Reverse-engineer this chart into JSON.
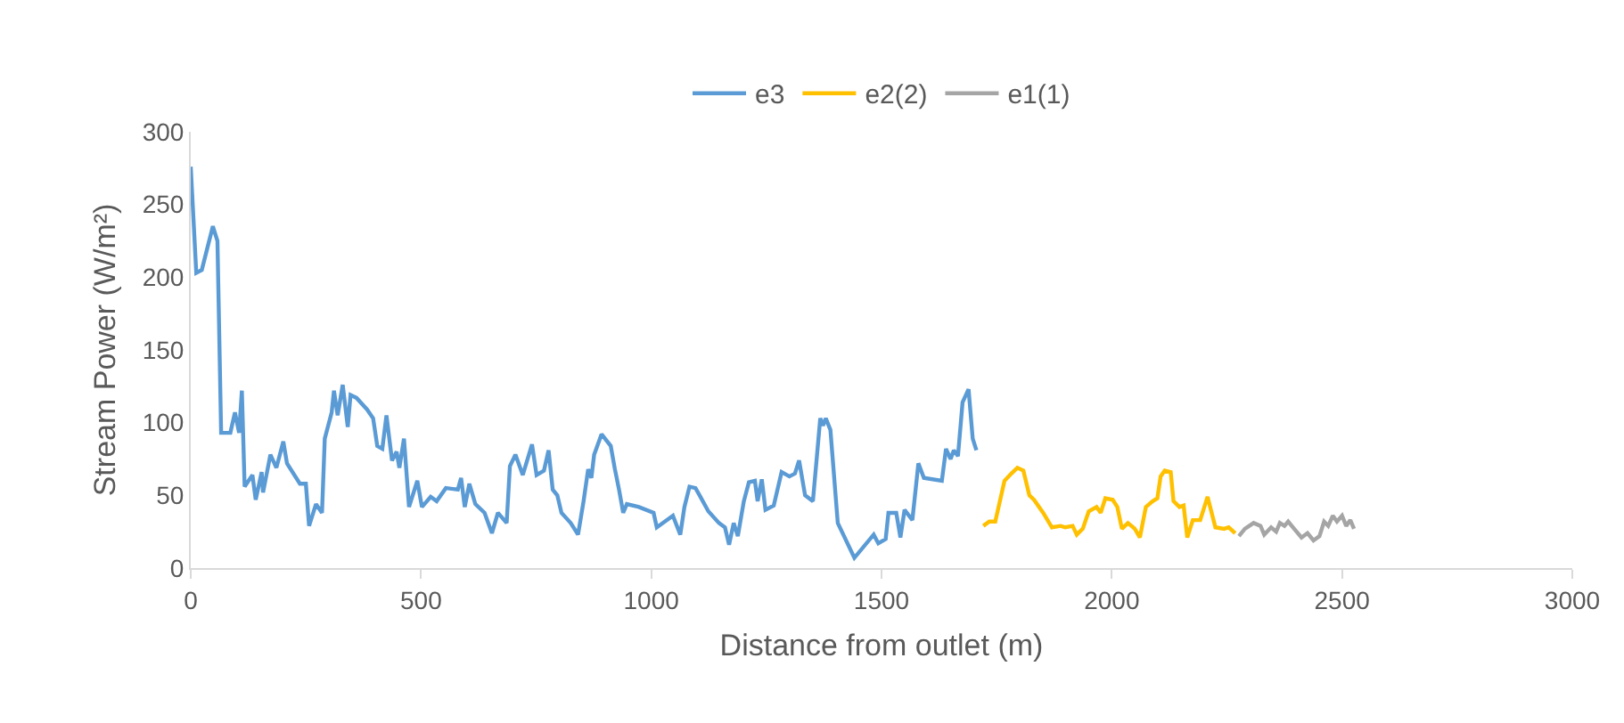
{
  "chart_data": {
    "type": "line",
    "xlabel": "Distance from outlet (m)",
    "ylabel": "Stream Power (W/m²)",
    "xlim": [
      0,
      3000
    ],
    "xticks": [
      0,
      500,
      1000,
      1500,
      2000,
      2500,
      3000
    ],
    "ylim": [
      0,
      300
    ],
    "yticks": [
      0,
      50,
      100,
      150,
      200,
      250,
      300
    ],
    "grid": false,
    "legend": "top",
    "marker": "none",
    "line_style": "solid",
    "series": [
      {
        "name": "e3",
        "color": "#5b9bd5",
        "x": [
          0,
          12,
          24,
          48,
          58,
          66,
          86,
          96,
          105,
          111,
          117,
          134,
          141,
          154,
          157,
          173,
          186,
          201,
          209,
          237,
          250,
          257,
          272,
          285,
          291,
          306,
          311,
          319,
          330,
          341,
          347,
          360,
          383,
          396,
          405,
          416,
          425,
          437,
          447,
          453,
          463,
          474,
          492,
          502,
          521,
          534,
          554,
          580,
          587,
          595,
          605,
          618,
          638,
          654,
          667,
          686,
          693,
          705,
          721,
          741,
          751,
          767,
          777,
          786,
          796,
          805,
          825,
          841,
          853,
          863,
          870,
          876,
          892,
          912,
          921,
          930,
          939,
          947,
          973,
          1005,
          1012,
          1047,
          1063,
          1072,
          1083,
          1096,
          1105,
          1124,
          1147,
          1160,
          1169,
          1179,
          1188,
          1201,
          1212,
          1225,
          1231,
          1240,
          1248,
          1266,
          1283,
          1300,
          1312,
          1321,
          1334,
          1351,
          1367,
          1373,
          1379,
          1389,
          1405,
          1441,
          1483,
          1493,
          1509,
          1515,
          1532,
          1541,
          1550,
          1567,
          1580,
          1592,
          1631,
          1640,
          1650,
          1657,
          1666,
          1676,
          1689,
          1698,
          1706
        ],
        "values": [
          276,
          203,
          205,
          235,
          225,
          93,
          93,
          107,
          93,
          122,
          56,
          64,
          47,
          66,
          52,
          78,
          69,
          87,
          72,
          58,
          58,
          29,
          44,
          38,
          89,
          107,
          122,
          105,
          126,
          97,
          119,
          117,
          109,
          103,
          84,
          82,
          105,
          74,
          80,
          69,
          89,
          42,
          60,
          42,
          49,
          46,
          55,
          54,
          62,
          42,
          58,
          44,
          38,
          24,
          38,
          31,
          70,
          78,
          64,
          85,
          64,
          67,
          81,
          54,
          50,
          38,
          31,
          23,
          46,
          68,
          62,
          78,
          92,
          84,
          68,
          54,
          38,
          44,
          42,
          38,
          28,
          36,
          23,
          42,
          56,
          55,
          50,
          39,
          31,
          28,
          16,
          31,
          22,
          46,
          59,
          60,
          46,
          61,
          40,
          43,
          66,
          63,
          65,
          74,
          50,
          46,
          103,
          98,
          103,
          95,
          31,
          7,
          23,
          17,
          20,
          38,
          38,
          21,
          40,
          33,
          72,
          62,
          60,
          82,
          75,
          81,
          77,
          114,
          123,
          89,
          81
        ]
      },
      {
        "name": "e2(2)",
        "color": "#ffc000",
        "x": [
          1721,
          1734,
          1747,
          1767,
          1782,
          1795,
          1808,
          1821,
          1831,
          1851,
          1870,
          1889,
          1899,
          1915,
          1924,
          1937,
          1950,
          1967,
          1976,
          1986,
          2002,
          2012,
          2022,
          2035,
          2050,
          2061,
          2074,
          2089,
          2099,
          2106,
          2115,
          2128,
          2134,
          2147,
          2156,
          2164,
          2176,
          2192,
          2208,
          2225,
          2244,
          2254,
          2268
        ],
        "values": [
          29,
          32,
          32,
          60,
          65,
          69,
          67,
          50,
          47,
          38,
          28,
          29,
          28,
          29,
          23,
          27,
          39,
          42,
          38,
          48,
          47,
          42,
          27,
          31,
          27,
          21,
          42,
          46,
          48,
          63,
          67,
          66,
          46,
          42,
          43,
          21,
          33,
          33,
          49,
          28,
          27,
          28,
          24
        ]
      },
      {
        "name": "e1(1)",
        "color": "#a5a5a5",
        "x": [
          2276,
          2289,
          2308,
          2323,
          2331,
          2346,
          2357,
          2365,
          2375,
          2383,
          2396,
          2412,
          2425,
          2438,
          2451,
          2461,
          2470,
          2480,
          2489,
          2500,
          2509,
          2518,
          2526
        ],
        "values": [
          22,
          27,
          31,
          29,
          23,
          28,
          25,
          31,
          29,
          32,
          27,
          21,
          24,
          19,
          22,
          32,
          29,
          36,
          32,
          36,
          29,
          33,
          27
        ]
      }
    ]
  }
}
